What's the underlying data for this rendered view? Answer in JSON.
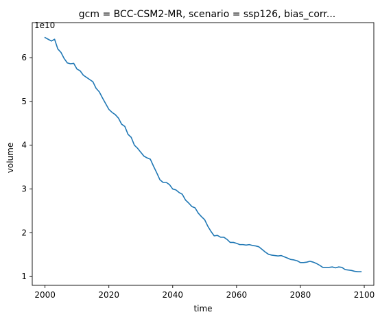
{
  "chart_data": {
    "type": "line",
    "title": "gcm = BCC-CSM2-MR, scenario = ssp126, bias_corr...",
    "xlabel": "time",
    "ylabel": "volume",
    "y_offset_label": "1e10",
    "xlim": [
      1996,
      2103
    ],
    "ylim": [
      0.8,
      6.8
    ],
    "y_scale": 10000000000,
    "x_ticks": [
      2000,
      2020,
      2040,
      2060,
      2080,
      2100
    ],
    "x_tick_labels": [
      "2000",
      "2020",
      "2040",
      "2060",
      "2080",
      "2100"
    ],
    "y_ticks": [
      1,
      2,
      3,
      4,
      5,
      6
    ],
    "y_tick_labels": [
      "1",
      "2",
      "3",
      "4",
      "5",
      "6"
    ],
    "grid": false,
    "series": [
      {
        "color": "#1f77b4",
        "x": [
          2000,
          2001,
          2002,
          2003,
          2004,
          2005,
          2006,
          2007,
          2008,
          2009,
          2010,
          2011,
          2012,
          2013,
          2014,
          2015,
          2016,
          2017,
          2018,
          2019,
          2020,
          2021,
          2022,
          2023,
          2024,
          2025,
          2026,
          2027,
          2028,
          2029,
          2030,
          2031,
          2032,
          2033,
          2034,
          2035,
          2036,
          2037,
          2038,
          2039,
          2040,
          2041,
          2042,
          2043,
          2044,
          2045,
          2046,
          2047,
          2048,
          2049,
          2050,
          2051,
          2052,
          2053,
          2054,
          2055,
          2056,
          2057,
          2058,
          2059,
          2060,
          2061,
          2062,
          2063,
          2064,
          2065,
          2066,
          2067,
          2068,
          2069,
          2070,
          2071,
          2072,
          2073,
          2074,
          2075,
          2076,
          2077,
          2078,
          2079,
          2080,
          2081,
          2082,
          2083,
          2084,
          2085,
          2086,
          2087,
          2088,
          2089,
          2090,
          2091,
          2092,
          2093,
          2094,
          2095,
          2096,
          2097,
          2098,
          2099
        ],
        "y": [
          6.46,
          6.42,
          6.38,
          6.42,
          6.2,
          6.12,
          5.98,
          5.88,
          5.86,
          5.87,
          5.74,
          5.7,
          5.6,
          5.55,
          5.5,
          5.45,
          5.3,
          5.22,
          5.08,
          4.95,
          4.82,
          4.75,
          4.7,
          4.62,
          4.48,
          4.43,
          4.25,
          4.18,
          4.0,
          3.93,
          3.84,
          3.75,
          3.71,
          3.68,
          3.52,
          3.37,
          3.21,
          3.15,
          3.15,
          3.1,
          3.0,
          2.98,
          2.92,
          2.88,
          2.75,
          2.68,
          2.6,
          2.57,
          2.45,
          2.37,
          2.3,
          2.15,
          2.03,
          1.93,
          1.94,
          1.9,
          1.9,
          1.85,
          1.78,
          1.78,
          1.76,
          1.73,
          1.73,
          1.72,
          1.73,
          1.71,
          1.7,
          1.68,
          1.62,
          1.56,
          1.51,
          1.49,
          1.48,
          1.47,
          1.48,
          1.45,
          1.42,
          1.39,
          1.38,
          1.36,
          1.32,
          1.32,
          1.33,
          1.35,
          1.33,
          1.3,
          1.26,
          1.21,
          1.21,
          1.21,
          1.22,
          1.2,
          1.22,
          1.21,
          1.16,
          1.15,
          1.14,
          1.12,
          1.11,
          1.11
        ]
      }
    ]
  }
}
